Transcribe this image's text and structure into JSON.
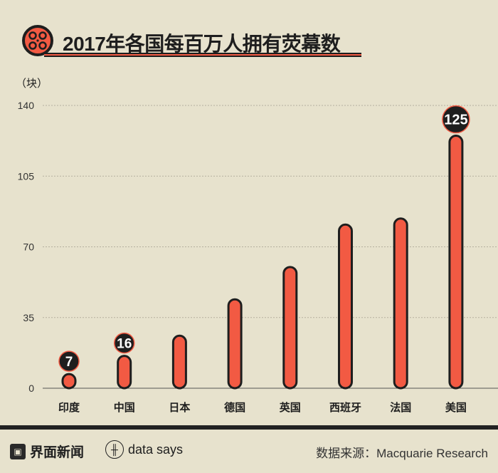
{
  "chart_data": {
    "type": "bar",
    "title": "2017年各国每百万人拥有荧幕数",
    "ylabel": "（块）",
    "xlabel": "",
    "categories": [
      "印度",
      "中国",
      "日本",
      "德国",
      "英国",
      "西班牙",
      "法国",
      "美国"
    ],
    "values": [
      7,
      16,
      26,
      44,
      60,
      81,
      84,
      125
    ],
    "data_labels": {
      "0": "7",
      "1": "16",
      "7": "125"
    },
    "yticks": [
      "0",
      "35",
      "70",
      "105",
      "140"
    ],
    "ytick_values": [
      0,
      35,
      70,
      105,
      140
    ],
    "ylim": [
      0,
      140
    ],
    "grid": true,
    "colors": {
      "bar": "#f25a43",
      "outline": "#1e1e1e",
      "background": "#e7e2cd",
      "grid": "#b5b09e"
    }
  },
  "footer": {
    "logo_icon": "film-frame-icon",
    "brand": "界面新闻",
    "sub_brand": "data says",
    "source": "数据来源：Macquarie Research"
  }
}
